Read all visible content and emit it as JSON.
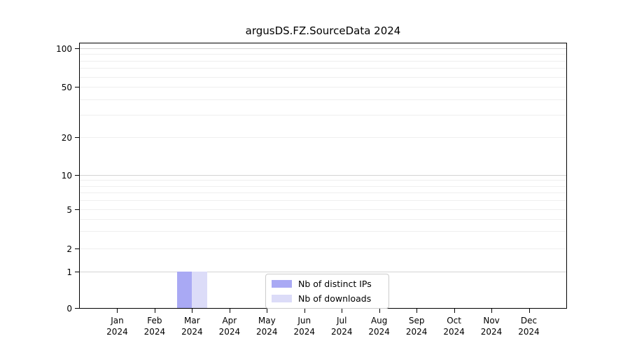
{
  "title": "argusDS.FZ.SourceData 2024",
  "chart_data": {
    "type": "bar",
    "title": "argusDS.FZ.SourceData 2024",
    "categories": [
      "Jan",
      "Feb",
      "Mar",
      "Apr",
      "May",
      "Jun",
      "Jul",
      "Aug",
      "Sep",
      "Oct",
      "Nov",
      "Dec"
    ],
    "year_label": "2024",
    "series": [
      {
        "name": "Nb of distinct IPs",
        "color": "#a9a9f4",
        "values": [
          0,
          0,
          1,
          0,
          0,
          0,
          0,
          0,
          0,
          0,
          0,
          0
        ]
      },
      {
        "name": "Nb of downloads",
        "color": "#dcdcf8",
        "values": [
          0,
          0,
          1,
          0,
          0,
          0,
          0,
          0,
          0,
          0,
          0,
          0
        ]
      }
    ],
    "xlabel": "",
    "ylabel": "",
    "yscale": "log-like (symlog)",
    "ytick_values": [
      0,
      1,
      2,
      5,
      10,
      20,
      50,
      100
    ],
    "yminor_values": [
      3,
      4,
      6,
      7,
      8,
      9,
      30,
      40,
      60,
      70,
      80,
      90
    ],
    "ylim": [
      0,
      110
    ],
    "grid": "horizontal",
    "legend_position": "lower center inside axes",
    "colors": {
      "major_grid": "#d4d4d4",
      "minor_grid": "#efefef",
      "axis": "#000000",
      "background": "#ffffff"
    }
  }
}
